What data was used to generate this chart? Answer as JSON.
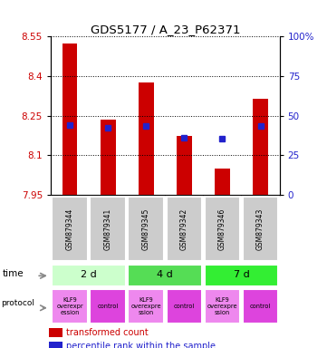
{
  "title": "GDS5177 / A_23_P62371",
  "samples": [
    "GSM879344",
    "GSM879341",
    "GSM879345",
    "GSM879342",
    "GSM879346",
    "GSM879343"
  ],
  "bar_bottoms": [
    7.95,
    7.95,
    7.95,
    7.95,
    7.95,
    7.95
  ],
  "bar_tops": [
    8.525,
    8.235,
    8.375,
    8.175,
    8.05,
    8.315
  ],
  "blue_vals": [
    8.215,
    8.205,
    8.212,
    8.168,
    8.163,
    8.212
  ],
  "ylim_left": [
    7.95,
    8.55
  ],
  "ylim_right": [
    0,
    100
  ],
  "yticks_left": [
    7.95,
    8.1,
    8.25,
    8.4,
    8.55
  ],
  "ytick_labels_left": [
    "7.95",
    "8.1",
    "8.25",
    "8.4",
    "8.55"
  ],
  "yticks_right": [
    0,
    25,
    50,
    75,
    100
  ],
  "ytick_labels_right": [
    "0",
    "25",
    "50",
    "75",
    "100%"
  ],
  "bar_color": "#cc0000",
  "blue_color": "#2222cc",
  "time_groups": [
    {
      "label": "2 d",
      "cols": [
        0,
        1
      ],
      "color": "#ccffcc"
    },
    {
      "label": "4 d",
      "cols": [
        2,
        3
      ],
      "color": "#55dd55"
    },
    {
      "label": "7 d",
      "cols": [
        4,
        5
      ],
      "color": "#33ee33"
    }
  ],
  "protocol_groups": [
    {
      "label": "KLF9\noverexpr\nession",
      "col": 0,
      "color": "#ee88ee"
    },
    {
      "label": "control",
      "col": 1,
      "color": "#dd44dd"
    },
    {
      "label": "KLF9\noverexpre\nssion",
      "col": 2,
      "color": "#ee88ee"
    },
    {
      "label": "control",
      "col": 3,
      "color": "#dd44dd"
    },
    {
      "label": "KLF9\noverexpre\nssion",
      "col": 4,
      "color": "#ee88ee"
    },
    {
      "label": "control",
      "col": 5,
      "color": "#dd44dd"
    }
  ],
  "legend_red_label": "transformed count",
  "legend_blue_label": "percentile rank within the sample",
  "left_color": "#cc0000",
  "right_color": "#2222cc",
  "sample_bg_color": "#cccccc",
  "bar_width": 0.4
}
